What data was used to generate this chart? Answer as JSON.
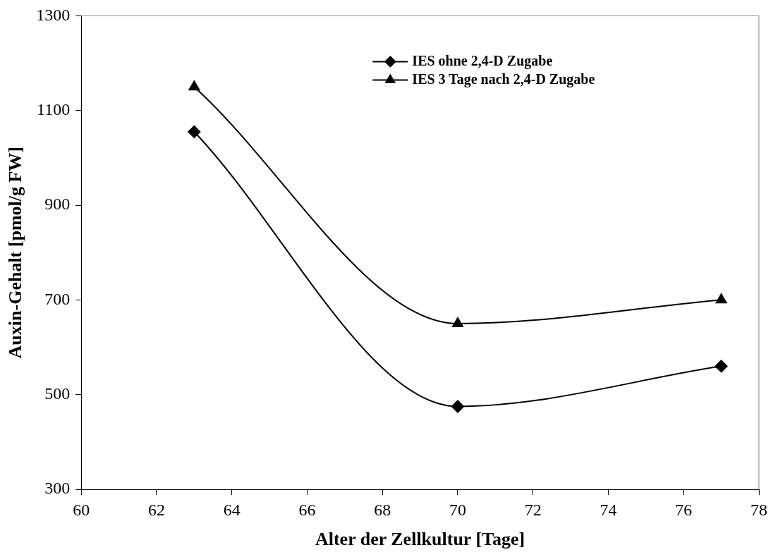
{
  "chart_data": {
    "type": "line",
    "xlabel": "Alter der Zellkultur [Tage]",
    "ylabel": "Auxin-Gehalt [pmol/g FW]",
    "x": [
      63,
      70,
      77
    ],
    "series": [
      {
        "name": "IES ohne 2,4-D Zugabe",
        "color": "#000000",
        "marker": "diamond",
        "values": [
          1055,
          475,
          560
        ]
      },
      {
        "name": "IES 3 Tage nach 2,4-D Zugabe",
        "color": "#000000",
        "marker": "triangle",
        "values": [
          1150,
          650,
          700
        ]
      }
    ],
    "xlim": [
      60,
      78
    ],
    "xticks": [
      60,
      62,
      64,
      66,
      68,
      70,
      72,
      74,
      76,
      78
    ],
    "ylim": [
      300,
      1300
    ],
    "yticks": [
      300,
      500,
      700,
      900,
      1100,
      1300
    ],
    "grid": false,
    "legend": "top right"
  }
}
